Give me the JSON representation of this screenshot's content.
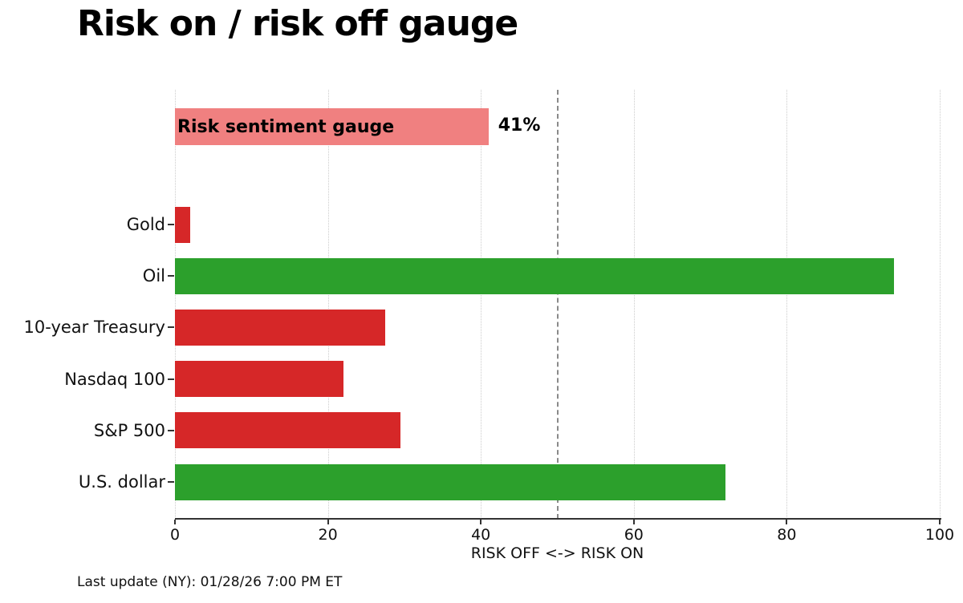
{
  "title": "Risk on / risk off gauge",
  "footer": "Last update (NY): 01/28/26 7:00 PM ET",
  "chart_data": {
    "type": "bar",
    "orientation": "horizontal",
    "title": "Risk on / risk off gauge",
    "xlabel": "RISK OFF <-> RISK ON",
    "xlim": [
      0,
      100
    ],
    "xticks": [
      0,
      20,
      40,
      60,
      80,
      100
    ],
    "grid": "vertical dotted gridlines at each x tick",
    "legend": "none",
    "reference_line": {
      "x": 50,
      "style": "dashed",
      "color": "#8a8a8a"
    },
    "gauge_row": {
      "label": "Risk sentiment gauge",
      "value": 41,
      "value_label": "41%",
      "color": "#f08080"
    },
    "categories": [
      "Gold",
      "Oil",
      "10-year Treasury",
      "Nasdaq 100",
      "S&P 500",
      "U.S. dollar"
    ],
    "values": [
      2,
      94,
      27.5,
      22,
      29.5,
      72
    ],
    "bar_colors": [
      "#d62728",
      "#2ca02c",
      "#d62728",
      "#d62728",
      "#d62728",
      "#2ca02c"
    ],
    "risk_off_color": "#d62728",
    "risk_on_color": "#2ca02c",
    "axis_color": "#333333",
    "gridline_color": "#cccccc"
  }
}
